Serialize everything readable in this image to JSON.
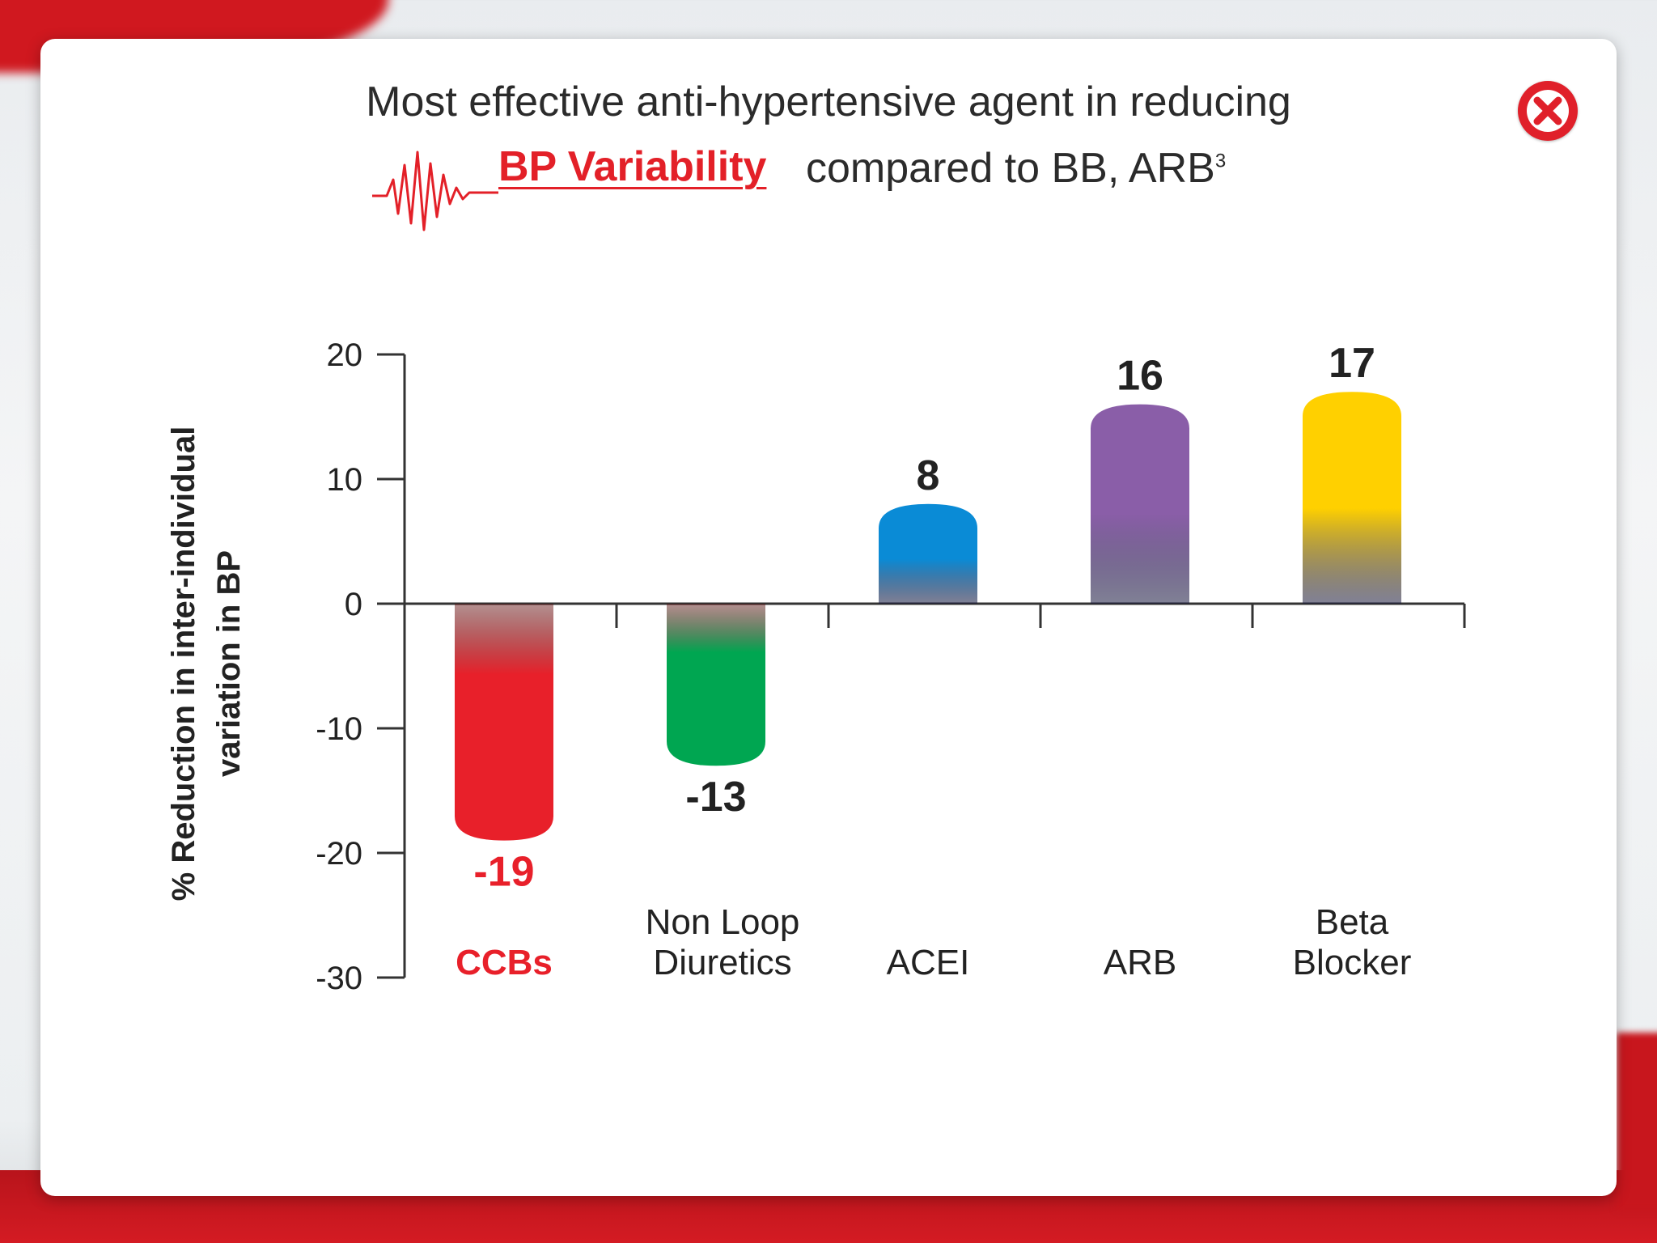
{
  "title": {
    "line1": "Most effective anti-hypertensive agent in reducing",
    "highlight": "BP Variability",
    "line2_rest": "compared to BB, ARB",
    "superscript": "3"
  },
  "close_button": {
    "icon": "close-icon",
    "color": "#e0202a"
  },
  "colors": {
    "accent": "#e32028",
    "CCBs": "#e8202a",
    "Non Loop Diuretics": "#00a651",
    "ACEI": "#0a8bd6",
    "ARB": "#8a5ea8",
    "Beta Blocker": "#ffd000"
  },
  "chart_data": {
    "type": "bar",
    "categories": [
      "CCBs",
      "Non Loop Diuretics",
      "ACEI",
      "ARB",
      "Beta Blocker"
    ],
    "category_lines": [
      [
        "CCBs"
      ],
      [
        "Non Loop",
        "Diuretics"
      ],
      [
        "ACEI"
      ],
      [
        "ARB"
      ],
      [
        "Beta",
        "Blocker"
      ]
    ],
    "values": [
      -19,
      -13,
      8,
      16,
      17
    ],
    "data_labels": [
      "-19",
      "-13",
      "8",
      "16",
      "17"
    ],
    "highlight_category": "CCBs",
    "ylabel_lines": [
      "% Reduction in inter-individual",
      "variation in BP"
    ],
    "xlabel": "",
    "ylim": [
      -30,
      20
    ],
    "yticks": [
      20,
      10,
      0,
      -10,
      -20,
      -30
    ],
    "grid": false
  }
}
